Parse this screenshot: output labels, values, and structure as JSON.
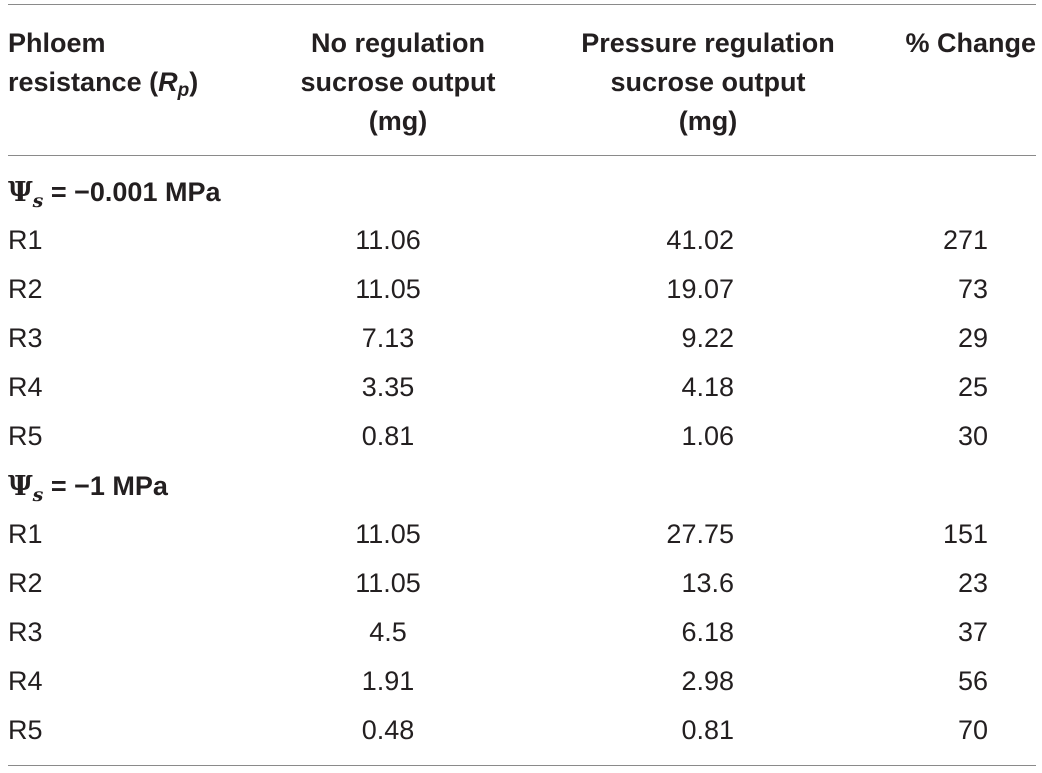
{
  "table": {
    "headers": {
      "col1_line1": "Phloem",
      "col1_line2_prefix": "resistance (",
      "col1_symbol": "R",
      "col1_subscript": "p",
      "col1_line2_suffix": ")",
      "col2_line1": "No regulation",
      "col2_line2": "sucrose output",
      "col2_line3": "(mg)",
      "col3_line1": "Pressure regulation",
      "col3_line2": "sucrose output",
      "col3_line3": "(mg)",
      "col4_line1": "% Change"
    },
    "groups": [
      {
        "psi": "Ψ",
        "subscript": "s",
        "label": " = −0.001 MPa",
        "rows": [
          {
            "resistance": "R1",
            "no_regulation": "11.06",
            "pressure_regulation": "41.02",
            "change": "271"
          },
          {
            "resistance": "R2",
            "no_regulation": "11.05",
            "pressure_regulation": "19.07",
            "change": "73"
          },
          {
            "resistance": "R3",
            "no_regulation": "7.13",
            "pressure_regulation": "9.22",
            "change": "29"
          },
          {
            "resistance": "R4",
            "no_regulation": "3.35",
            "pressure_regulation": "4.18",
            "change": "25"
          },
          {
            "resistance": "R5",
            "no_regulation": "0.81",
            "pressure_regulation": "1.06",
            "change": "30"
          }
        ]
      },
      {
        "psi": "Ψ",
        "subscript": "s",
        "label": " = −1 MPa",
        "rows": [
          {
            "resistance": "R1",
            "no_regulation": "11.05",
            "pressure_regulation": "27.75",
            "change": "151"
          },
          {
            "resistance": "R2",
            "no_regulation": "11.05",
            "pressure_regulation": "13.6",
            "change": "23"
          },
          {
            "resistance": "R3",
            "no_regulation": "4.5",
            "pressure_regulation": "6.18",
            "change": "37"
          },
          {
            "resistance": "R4",
            "no_regulation": "1.91",
            "pressure_regulation": "2.98",
            "change": "56"
          },
          {
            "resistance": "R5",
            "no_regulation": "0.48",
            "pressure_regulation": "0.81",
            "change": "70"
          }
        ]
      }
    ],
    "colors": {
      "text": "#231f20",
      "rule": "#8a8a8a"
    }
  }
}
